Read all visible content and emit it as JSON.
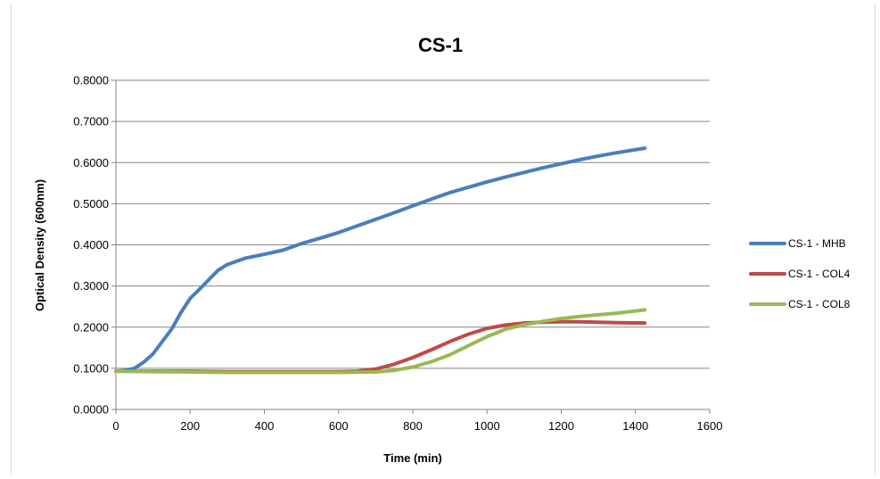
{
  "chart_data": {
    "type": "line",
    "title": "CS-1",
    "xlabel": "Time (min)",
    "ylabel": "Optical Density (600nm)",
    "xlim": [
      0,
      1600
    ],
    "ylim": [
      0,
      0.8
    ],
    "x_ticks": [
      "0",
      "200",
      "400",
      "600",
      "800",
      "1000",
      "1200",
      "1400",
      "1600"
    ],
    "y_ticks": [
      "0.0000",
      "0.1000",
      "0.2000",
      "0.3000",
      "0.4000",
      "0.5000",
      "0.6000",
      "0.7000",
      "0.8000"
    ],
    "grid": "horizontal",
    "legend": "right",
    "series": [
      {
        "name": "CS-1 - MHB",
        "color": "#4a7ebb",
        "points": [
          [
            0,
            0.093
          ],
          [
            25,
            0.095
          ],
          [
            50,
            0.1
          ],
          [
            75,
            0.115
          ],
          [
            100,
            0.135
          ],
          [
            125,
            0.165
          ],
          [
            150,
            0.195
          ],
          [
            175,
            0.235
          ],
          [
            200,
            0.27
          ],
          [
            225,
            0.292
          ],
          [
            250,
            0.315
          ],
          [
            275,
            0.338
          ],
          [
            300,
            0.352
          ],
          [
            350,
            0.368
          ],
          [
            400,
            0.377
          ],
          [
            450,
            0.387
          ],
          [
            500,
            0.403
          ],
          [
            550,
            0.416
          ],
          [
            600,
            0.43
          ],
          [
            650,
            0.446
          ],
          [
            700,
            0.462
          ],
          [
            750,
            0.478
          ],
          [
            800,
            0.495
          ],
          [
            850,
            0.511
          ],
          [
            900,
            0.527
          ],
          [
            950,
            0.54
          ],
          [
            1000,
            0.553
          ],
          [
            1050,
            0.565
          ],
          [
            1100,
            0.576
          ],
          [
            1150,
            0.587
          ],
          [
            1200,
            0.597
          ],
          [
            1250,
            0.607
          ],
          [
            1300,
            0.616
          ],
          [
            1350,
            0.624
          ],
          [
            1425,
            0.635
          ]
        ]
      },
      {
        "name": "CS-1 - COL4",
        "color": "#be4b48",
        "points": [
          [
            0,
            0.093
          ],
          [
            100,
            0.093
          ],
          [
            200,
            0.093
          ],
          [
            300,
            0.092
          ],
          [
            400,
            0.092
          ],
          [
            500,
            0.092
          ],
          [
            600,
            0.092
          ],
          [
            650,
            0.093
          ],
          [
            700,
            0.098
          ],
          [
            750,
            0.11
          ],
          [
            800,
            0.126
          ],
          [
            850,
            0.145
          ],
          [
            900,
            0.165
          ],
          [
            950,
            0.183
          ],
          [
            1000,
            0.197
          ],
          [
            1050,
            0.205
          ],
          [
            1100,
            0.21
          ],
          [
            1150,
            0.212
          ],
          [
            1200,
            0.213
          ],
          [
            1250,
            0.213
          ],
          [
            1300,
            0.212
          ],
          [
            1350,
            0.211
          ],
          [
            1425,
            0.21
          ]
        ]
      },
      {
        "name": "CS-1 - COL8",
        "color": "#98b954",
        "points": [
          [
            0,
            0.093
          ],
          [
            100,
            0.092
          ],
          [
            200,
            0.091
          ],
          [
            300,
            0.09
          ],
          [
            400,
            0.09
          ],
          [
            500,
            0.09
          ],
          [
            600,
            0.09
          ],
          [
            700,
            0.091
          ],
          [
            750,
            0.095
          ],
          [
            800,
            0.103
          ],
          [
            850,
            0.116
          ],
          [
            900,
            0.133
          ],
          [
            950,
            0.155
          ],
          [
            1000,
            0.177
          ],
          [
            1050,
            0.195
          ],
          [
            1100,
            0.206
          ],
          [
            1150,
            0.214
          ],
          [
            1200,
            0.221
          ],
          [
            1250,
            0.226
          ],
          [
            1300,
            0.23
          ],
          [
            1350,
            0.234
          ],
          [
            1425,
            0.242
          ]
        ]
      }
    ]
  }
}
